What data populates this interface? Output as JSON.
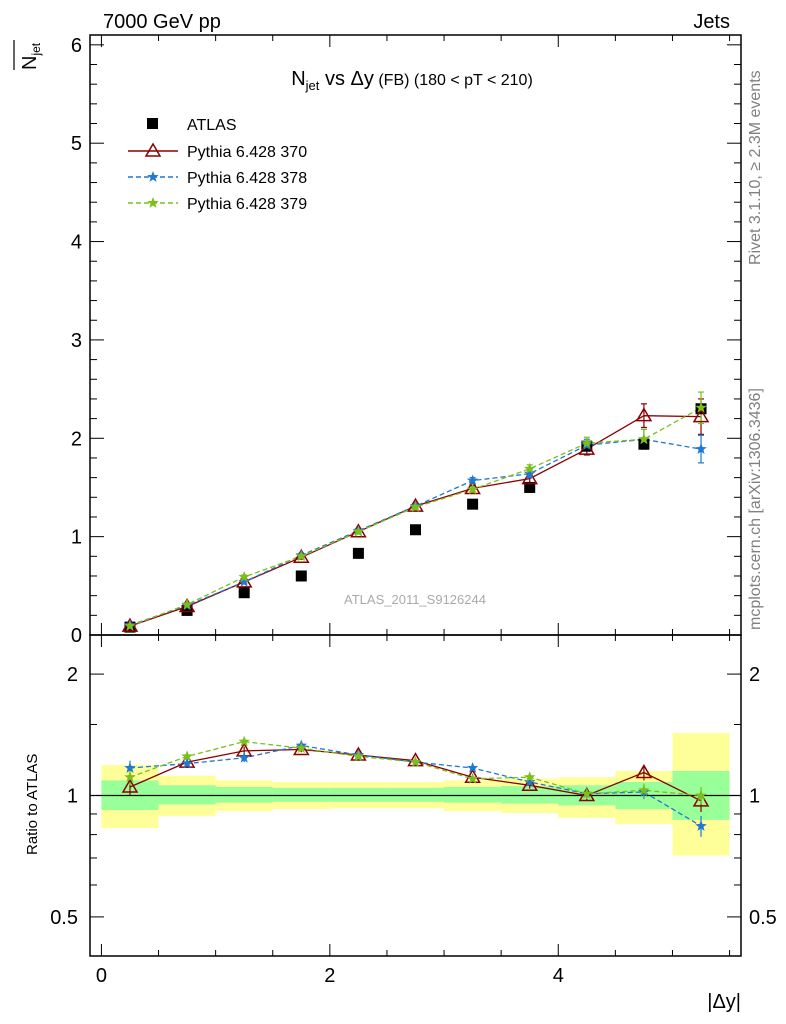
{
  "header": {
    "left": "7000 GeV pp",
    "right": "Jets"
  },
  "title": {
    "main": "N",
    "sub": "jet",
    "vs": " vs ",
    "dy": "Δy",
    "fb": " (FB)",
    "cut": " (180 < pT < 210)"
  },
  "side_labels": {
    "rivet": "Rivet 3.1.10, ≥ 2.3M events",
    "mcplots": "mcplots.cern.ch [arXiv:1306.3436]"
  },
  "watermark": "ATLAS_2011_S9126244",
  "upper_ylabel": {
    "main": "N",
    "sub": "jet"
  },
  "lower_ylabel": "Ratio to ATLAS",
  "xlabel": "|Δy|",
  "colors": {
    "atlas": "#000000",
    "p370": "#8b0000",
    "p378": "#1f78d4",
    "p379": "#7cbf1a",
    "band_inner": "#99ff99",
    "band_outer": "#ffff99"
  },
  "chart_data": [
    {
      "type": "scatter",
      "xlim": [
        -0.1,
        5.6
      ],
      "ylim": [
        0,
        6.1
      ],
      "xticks": [
        "0",
        "2",
        "4"
      ],
      "yticks": [
        "0",
        "1",
        "2",
        "3",
        "4",
        "5",
        "6"
      ],
      "x": [
        0.25,
        0.75,
        1.25,
        1.75,
        2.25,
        2.75,
        3.25,
        3.75,
        4.25,
        4.75,
        5.25
      ],
      "x_edges": [
        0,
        0.5,
        1,
        1.5,
        2,
        2.5,
        3,
        3.5,
        4,
        4.5,
        5,
        5.5
      ],
      "series": [
        {
          "name": "ATLAS",
          "values": [
            0.08,
            0.25,
            0.43,
            0.6,
            0.83,
            1.07,
            1.33,
            1.5,
            1.92,
            1.94,
            2.3
          ]
        },
        {
          "name": "Pythia 6.428 370",
          "values": [
            0.09,
            0.29,
            0.54,
            0.79,
            1.05,
            1.31,
            1.49,
            1.59,
            1.89,
            2.23,
            2.22
          ],
          "errors": [
            0.02,
            0.02,
            0.02,
            0.02,
            0.02,
            0.03,
            0.03,
            0.04,
            0.06,
            0.12,
            0.18
          ]
        },
        {
          "name": "Pythia 6.428 378",
          "values": [
            0.1,
            0.3,
            0.54,
            0.81,
            1.06,
            1.31,
            1.57,
            1.64,
            1.93,
            1.99,
            1.89
          ],
          "errors": [
            0.02,
            0.02,
            0.02,
            0.02,
            0.02,
            0.03,
            0.03,
            0.04,
            0.06,
            0.1,
            0.14
          ]
        },
        {
          "name": "Pythia 6.428 379",
          "values": [
            0.09,
            0.31,
            0.59,
            0.8,
            1.05,
            1.3,
            1.48,
            1.69,
            1.95,
            1.99,
            2.31
          ],
          "errors": [
            0.02,
            0.02,
            0.02,
            0.02,
            0.02,
            0.03,
            0.03,
            0.04,
            0.06,
            0.1,
            0.16
          ]
        }
      ]
    },
    {
      "type": "line",
      "xlim": [
        -0.1,
        5.6
      ],
      "ylim_log": [
        0.4,
        2.5
      ],
      "xticks": [
        "0",
        "2",
        "4"
      ],
      "yticks": [
        "0.5",
        "1",
        "2"
      ],
      "ytick_values": [
        0.5,
        1,
        2
      ],
      "x": [
        0.25,
        0.75,
        1.25,
        1.75,
        2.25,
        2.75,
        3.25,
        3.75,
        4.25,
        4.75,
        5.25
      ],
      "x_edges": [
        0,
        0.5,
        1,
        1.5,
        2,
        2.5,
        3,
        3.5,
        4,
        4.5,
        5,
        5.5
      ],
      "band_inner": [
        [
          0.92,
          1.09
        ],
        [
          0.95,
          1.06
        ],
        [
          0.96,
          1.05
        ],
        [
          0.965,
          1.045
        ],
        [
          0.965,
          1.045
        ],
        [
          0.965,
          1.045
        ],
        [
          0.96,
          1.05
        ],
        [
          0.955,
          1.055
        ],
        [
          0.945,
          1.06
        ],
        [
          0.925,
          1.08
        ],
        [
          0.87,
          1.15
        ]
      ],
      "band_outer": [
        [
          0.83,
          1.19
        ],
        [
          0.89,
          1.12
        ],
        [
          0.915,
          1.09
        ],
        [
          0.925,
          1.08
        ],
        [
          0.93,
          1.08
        ],
        [
          0.93,
          1.08
        ],
        [
          0.915,
          1.09
        ],
        [
          0.905,
          1.1
        ],
        [
          0.88,
          1.11
        ],
        [
          0.85,
          1.15
        ],
        [
          0.71,
          1.43
        ]
      ],
      "series": [
        {
          "name": "Pythia 6.428 370",
          "values": [
            1.05,
            1.21,
            1.29,
            1.3,
            1.26,
            1.22,
            1.11,
            1.06,
            1.0,
            1.14,
            0.97
          ],
          "errors": [
            0.05,
            0.03,
            0.03,
            0.02,
            0.02,
            0.02,
            0.02,
            0.02,
            0.03,
            0.05,
            0.06
          ]
        },
        {
          "name": "Pythia 6.428 378",
          "values": [
            1.17,
            1.2,
            1.24,
            1.33,
            1.26,
            1.21,
            1.17,
            1.08,
            1.01,
            1.02,
            0.84
          ],
          "errors": [
            0.05,
            0.03,
            0.03,
            0.02,
            0.02,
            0.02,
            0.02,
            0.02,
            0.03,
            0.04,
            0.05
          ]
        },
        {
          "name": "Pythia 6.428 379",
          "values": [
            1.11,
            1.25,
            1.36,
            1.31,
            1.25,
            1.21,
            1.1,
            1.11,
            1.01,
            1.03,
            1.0
          ],
          "errors": [
            0.05,
            0.03,
            0.03,
            0.02,
            0.02,
            0.02,
            0.02,
            0.02,
            0.03,
            0.04,
            0.05
          ]
        }
      ]
    }
  ]
}
